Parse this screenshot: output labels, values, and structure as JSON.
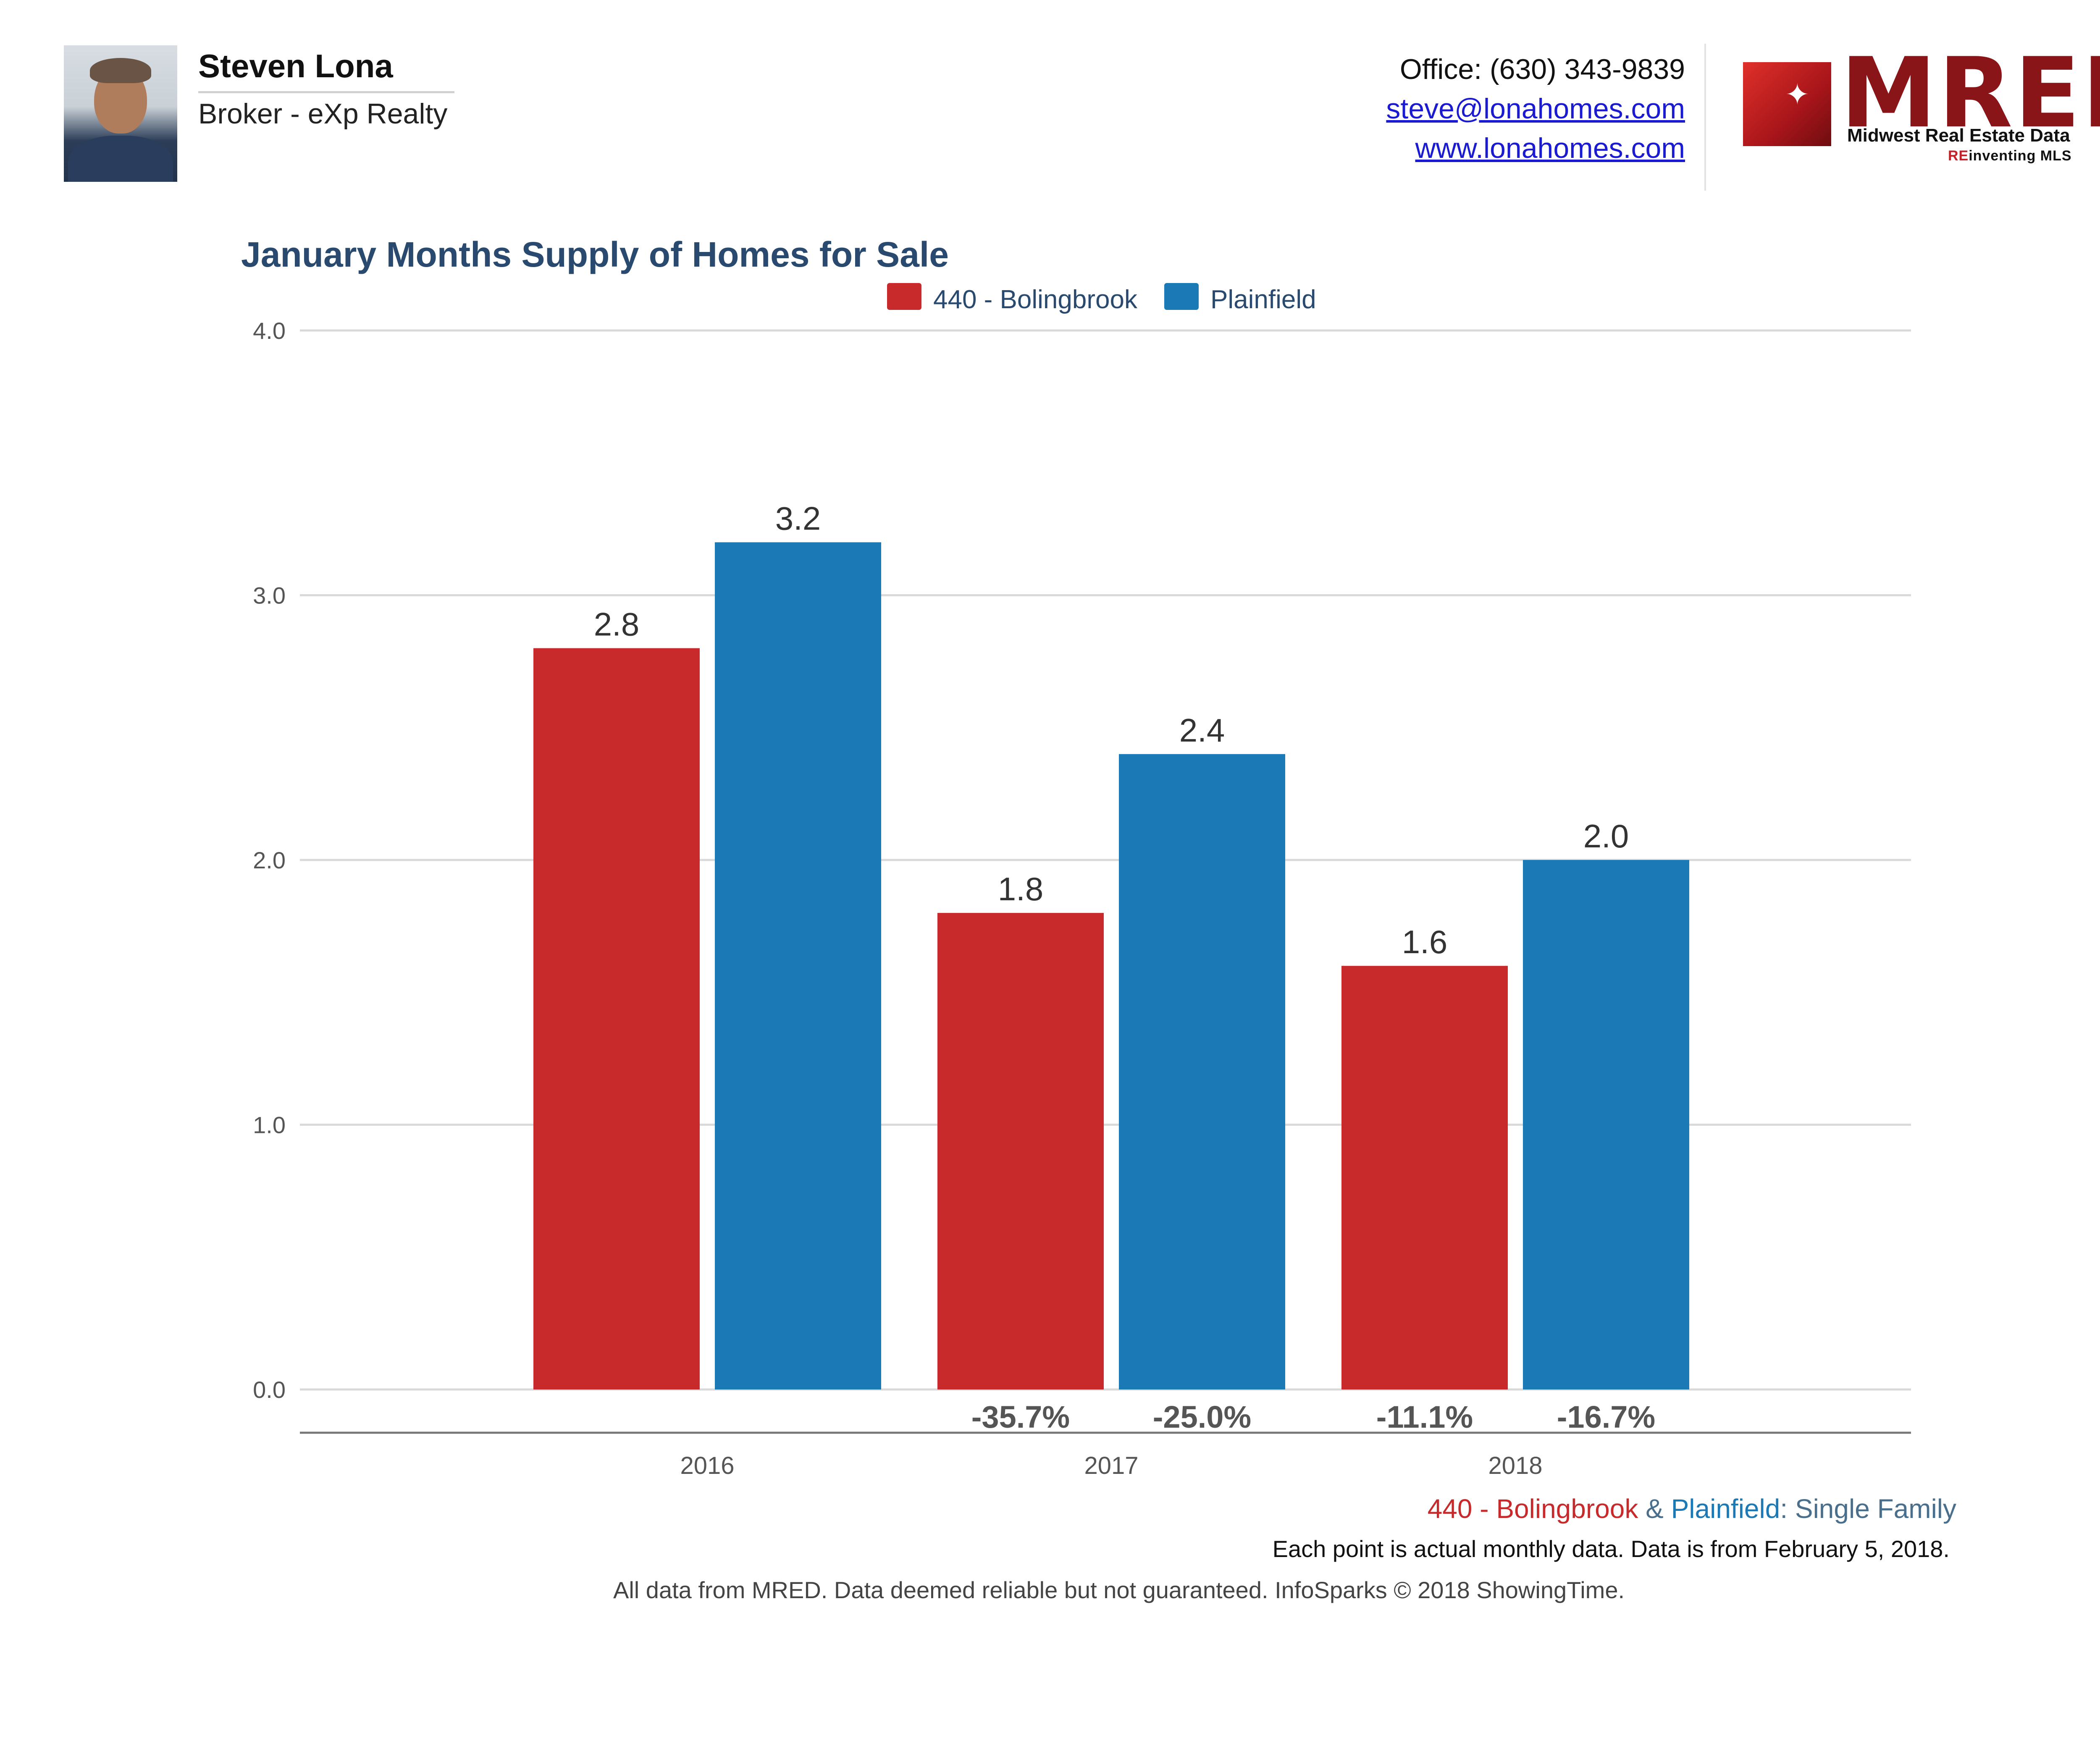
{
  "agent": {
    "name": "Steven Lona",
    "title": "Broker - eXp Realty",
    "office": "Office: (630) 343-9839",
    "email": "steve@lonahomes.com",
    "website": "www.lonahomes.com"
  },
  "logo": {
    "wordmark": "MRED",
    "registered": "®",
    "subtitle": "Midwest Real Estate Data",
    "tagline_prefix": "RE",
    "tagline_rest": "inventing MLS"
  },
  "colors": {
    "series1": "#c8292a",
    "series2": "#1b7ab5",
    "title": "#294a6e"
  },
  "chart_data": {
    "type": "bar",
    "title": "January Months Supply of Homes for Sale",
    "categories": [
      "2016",
      "2017",
      "2018"
    ],
    "series": [
      {
        "name": "440 - Bolingbrook",
        "values": [
          2.8,
          1.8,
          1.6
        ],
        "changes": [
          "",
          "-35.7%",
          "-11.1%"
        ]
      },
      {
        "name": "Plainfield",
        "values": [
          3.2,
          2.4,
          2.0
        ],
        "changes": [
          "",
          "-25.0%",
          "-16.7%"
        ]
      }
    ],
    "value_labels": [
      [
        "2.8",
        "1.8",
        "1.6"
      ],
      [
        "3.2",
        "2.4",
        "2.0"
      ]
    ],
    "yticks": [
      "0.0",
      "1.0",
      "2.0",
      "3.0",
      "4.0"
    ],
    "ylim": [
      0,
      4
    ],
    "grid": true,
    "legend_position": "top-center"
  },
  "footer": {
    "series1": "440 - Bolingbrook",
    "amp": " & ",
    "series2": "Plainfield",
    "suffix": ": Single Family",
    "note": "Each point is actual monthly data. Data is from February 5, 2018.",
    "legal": "All data from MRED. Data deemed reliable but not guaranteed. InfoSparks © 2018 ShowingTime."
  }
}
